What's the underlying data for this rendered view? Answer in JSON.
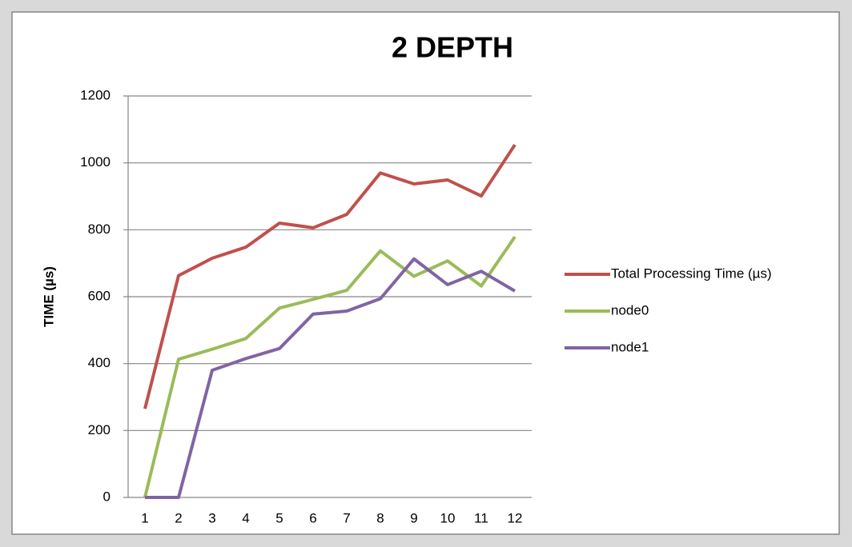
{
  "chart_data": {
    "type": "line",
    "title": "2 DEPTH",
    "y_label": "TIME (µs)",
    "categories": [
      "1",
      "2",
      "3",
      "4",
      "5",
      "6",
      "7",
      "8",
      "9",
      "10",
      "11",
      "12"
    ],
    "series": [
      {
        "name": "Total Processing Time (µs)",
        "color": "#c0504d",
        "values": [
          265,
          663,
          715,
          748,
          820,
          806,
          846,
          970,
          937,
          949,
          901,
          1054
        ]
      },
      {
        "name": "node0",
        "color": "#9bbb59",
        "values": [
          0,
          413,
          443,
          475,
          566,
          592,
          619,
          737,
          661,
          707,
          632,
          779
        ]
      },
      {
        "name": "node1",
        "color": "#8064a2",
        "values": [
          0,
          0,
          380,
          415,
          445,
          548,
          557,
          594,
          713,
          636,
          676,
          617
        ]
      }
    ],
    "ylim": [
      0,
      1200
    ],
    "yticks": [
      0,
      200,
      400,
      600,
      800,
      1000,
      1200
    ],
    "grid": true,
    "legend": "right"
  }
}
